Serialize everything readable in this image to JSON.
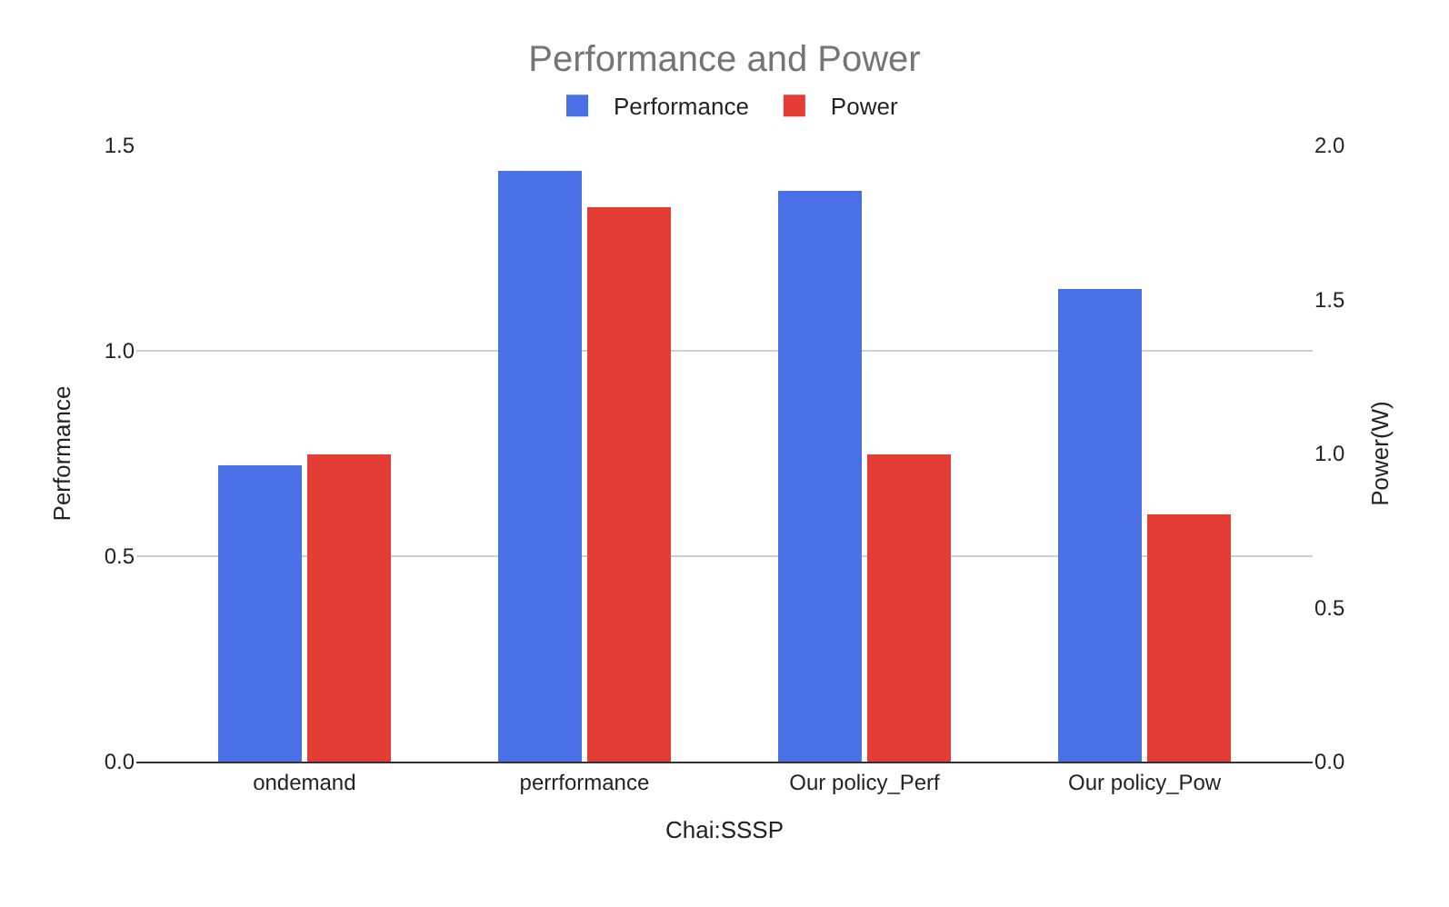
{
  "chart_data": {
    "type": "bar",
    "title": "Performance and Power",
    "xlabel": "Chai:SSSP",
    "ylabel": "Performance",
    "y2label": "Power(W)",
    "categories": [
      "ondemand",
      "perrformance",
      "Our policy_Perf",
      "Our policy_Pow"
    ],
    "series": [
      {
        "name": "Performance",
        "color": "#4a70e8",
        "values": [
          0.72,
          1.44,
          1.39,
          1.15
        ]
      },
      {
        "name": "Power",
        "color": "#e33d35",
        "values": [
          1.0,
          1.8,
          1.0,
          0.8
        ],
        "axis": "y2"
      }
    ],
    "ylim": [
      0,
      1.5
    ],
    "yticks": [
      {
        "value": 0,
        "label": "0.0"
      },
      {
        "value": 0.5,
        "label": "0.5"
      },
      {
        "value": 1,
        "label": "1.0"
      },
      {
        "value": 1.5,
        "label": "1.5"
      }
    ],
    "y2lim": [
      0,
      2
    ],
    "y2ticks": [
      {
        "value": 0,
        "label": "0.0"
      },
      {
        "value": 0.5,
        "label": "0.5"
      },
      {
        "value": 1,
        "label": "1.0"
      },
      {
        "value": 1.5,
        "label": "1.5"
      },
      {
        "value": 2,
        "label": "2.0"
      }
    ],
    "grid": "y",
    "legend": "top"
  }
}
